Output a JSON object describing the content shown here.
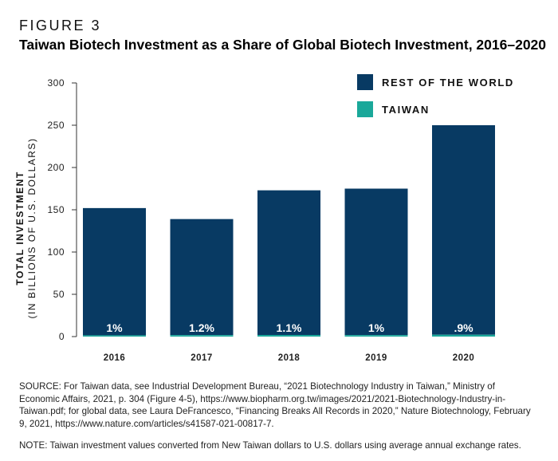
{
  "figure_label": "FIGURE 3",
  "title": "Taiwan Biotech Investment as a Share of Global Biotech Investment, 2016–2020",
  "source": "SOURCE: For Taiwan data, see Industrial Development Bureau, “2021 Biotechnology Industry in Taiwan,” Ministry of Economic Affairs, 2021, p. 304 (Figure 4-5), https://www.biopharm.org.tw/images/2021/2021-Biotechnology-Industry-in-Taiwan.pdf; for global data, see Laura DeFrancesco, “Financing Breaks All Records in 2020,” Nature Biotechnology, February 9, 2021, https://www.nature.com/articles/s41587-021-00817-7.",
  "note": "NOTE: Taiwan investment values converted from New Taiwan dollars to U.S. dollars using average annual exchange rates.",
  "chart_data": {
    "type": "bar",
    "stacked": true,
    "categories": [
      "2016",
      "2017",
      "2018",
      "2019",
      "2020"
    ],
    "series": [
      {
        "name": "TAIWAN",
        "color": "#1aa89a",
        "values": [
          1.5,
          1.7,
          1.9,
          1.7,
          2.2
        ]
      },
      {
        "name": "REST OF THE WORLD",
        "color": "#083a63",
        "values": [
          150.5,
          137.3,
          171.1,
          173.3,
          247.8
        ]
      }
    ],
    "data_labels": [
      "1%",
      "1.2%",
      "1.1%",
      "1%",
      ".9%"
    ],
    "ylabel_line1": "TOTAL INVESTMENT",
    "ylabel_line2": "(IN BILLIONS OF U.S. DOLLARS)",
    "ylim": [
      0,
      300
    ],
    "yticks": [
      0,
      50,
      100,
      150,
      200,
      250,
      300
    ],
    "grid": false,
    "legend_position": "top-right"
  }
}
